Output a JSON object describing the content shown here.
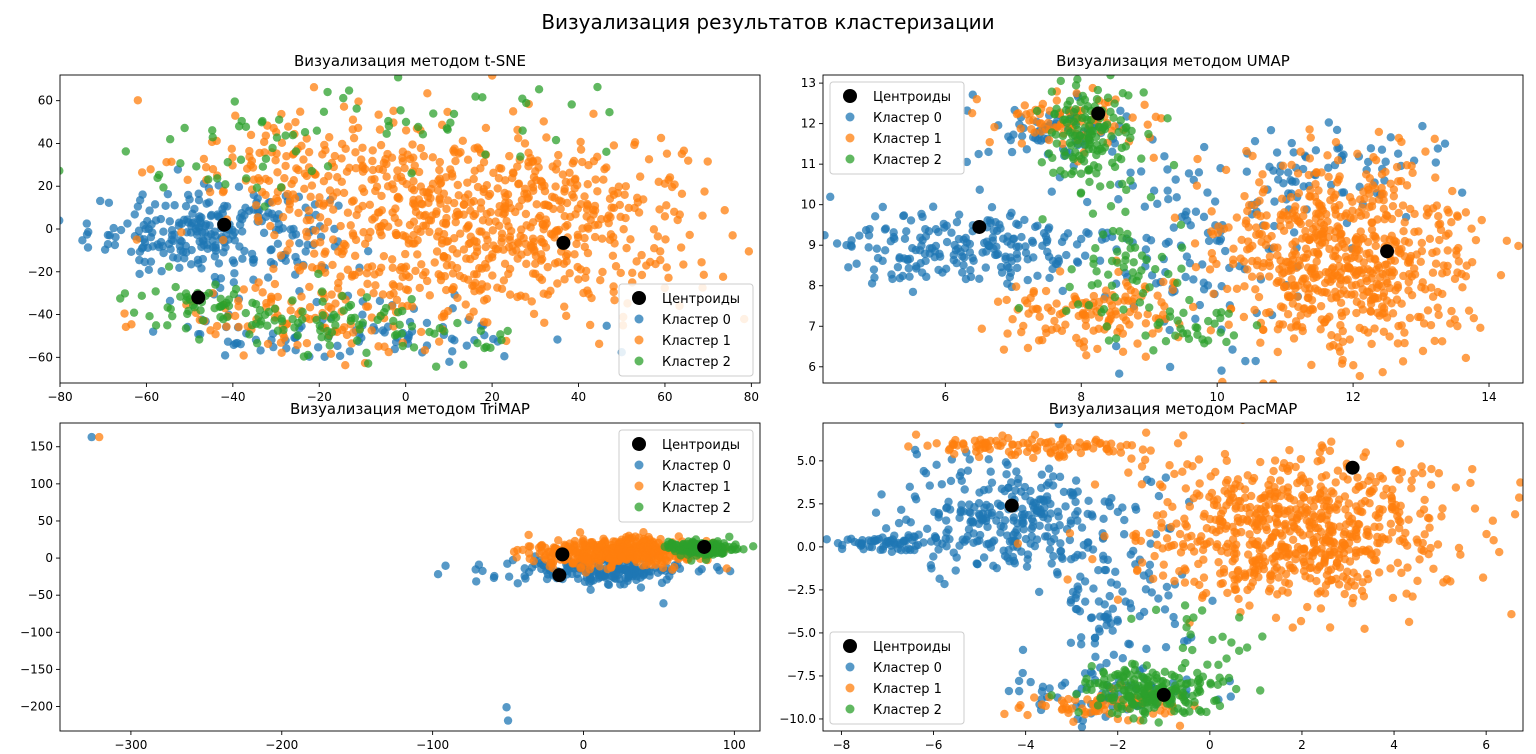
{
  "suptitle": "Визуализация результатов кластеризации",
  "colors": {
    "cluster0": "#1f77b4",
    "cluster1": "#ff7f0e",
    "cluster2": "#2ca02c",
    "centroid": "#000000"
  },
  "chart_data": [
    {
      "type": "scatter",
      "title": "Визуализация методом t-SNE",
      "xlim": [
        -80,
        82
      ],
      "ylim": [
        -72,
        72
      ],
      "xticks": [
        -80,
        -60,
        -40,
        -20,
        0,
        20,
        40,
        60,
        80
      ],
      "yticks": [
        -60,
        -40,
        -20,
        0,
        20,
        40,
        60
      ],
      "grid": false,
      "legend": {
        "position": "lower-right",
        "entries": [
          "Центроиды",
          "Кластер 0",
          "Кластер 1",
          "Кластер 2"
        ]
      },
      "centroids": [
        [
          -42,
          2
        ],
        [
          36.5,
          -6.5
        ],
        [
          -48,
          -32
        ]
      ],
      "clouds": [
        {
          "cluster": 0,
          "cx": -45,
          "cy": -2,
          "sx": 14,
          "sy": 10,
          "n": 260
        },
        {
          "cluster": 0,
          "cx": -20,
          "cy": -50,
          "sx": 18,
          "sy": 6,
          "n": 50
        },
        {
          "cluster": 0,
          "cx": 5,
          "cy": -45,
          "sx": 15,
          "sy": 7,
          "n": 40
        },
        {
          "cluster": 1,
          "cx": 20,
          "cy": 2,
          "sx": 26,
          "sy": 22,
          "n": 700
        },
        {
          "cluster": 1,
          "cx": -20,
          "cy": 30,
          "sx": 18,
          "sy": 12,
          "n": 140
        },
        {
          "cluster": 1,
          "cx": -20,
          "cy": -40,
          "sx": 18,
          "sy": 10,
          "n": 120
        },
        {
          "cluster": 2,
          "cx": -45,
          "cy": -34,
          "sx": 9,
          "sy": 5,
          "n": 50
        },
        {
          "cluster": 2,
          "cx": -25,
          "cy": -42,
          "sx": 12,
          "sy": 7,
          "n": 45
        },
        {
          "cluster": 2,
          "cx": -40,
          "cy": 35,
          "sx": 15,
          "sy": 10,
          "n": 35
        },
        {
          "cluster": 2,
          "cx": 10,
          "cy": 52,
          "sx": 22,
          "sy": 8,
          "n": 35
        },
        {
          "cluster": 2,
          "cx": 0,
          "cy": -50,
          "sx": 15,
          "sy": 8,
          "n": 40
        }
      ]
    },
    {
      "type": "scatter",
      "title": "Визуализация методом UMAP",
      "xlim": [
        4.2,
        14.5
      ],
      "ylim": [
        5.6,
        13.2
      ],
      "xticks": [
        6,
        8,
        10,
        12,
        14
      ],
      "yticks": [
        6,
        7,
        8,
        9,
        10,
        11,
        12,
        13
      ],
      "grid": false,
      "legend": {
        "position": "upper-left",
        "entries": [
          "Центроиды",
          "Кластер 0",
          "Кластер 1",
          "Кластер 2"
        ]
      },
      "centroids": [
        [
          6.5,
          9.45
        ],
        [
          8.25,
          12.25
        ],
        [
          12.5,
          8.85
        ]
      ],
      "clouds": [
        {
          "cluster": 0,
          "cx": 6.3,
          "cy": 8.9,
          "sx": 0.9,
          "sy": 0.45,
          "n": 200
        },
        {
          "cluster": 0,
          "cx": 7.6,
          "cy": 11.8,
          "sx": 0.6,
          "sy": 0.5,
          "n": 70
        },
        {
          "cluster": 0,
          "cx": 9.5,
          "cy": 8.8,
          "sx": 1.0,
          "sy": 1.1,
          "n": 120
        },
        {
          "cluster": 0,
          "cx": 11.5,
          "cy": 10.8,
          "sx": 0.9,
          "sy": 0.6,
          "n": 70
        },
        {
          "cluster": 1,
          "cx": 11.8,
          "cy": 8.7,
          "sx": 1.0,
          "sy": 1.2,
          "n": 650
        },
        {
          "cluster": 1,
          "cx": 8.2,
          "cy": 7.3,
          "sx": 0.8,
          "sy": 0.5,
          "n": 130
        },
        {
          "cluster": 1,
          "cx": 7.8,
          "cy": 12.1,
          "sx": 0.6,
          "sy": 0.4,
          "n": 80
        },
        {
          "cluster": 2,
          "cx": 8.1,
          "cy": 11.8,
          "sx": 0.35,
          "sy": 0.6,
          "n": 140
        },
        {
          "cluster": 2,
          "cx": 8.7,
          "cy": 8.4,
          "sx": 0.5,
          "sy": 0.8,
          "n": 60
        },
        {
          "cluster": 2,
          "cx": 9.6,
          "cy": 7.0,
          "sx": 0.5,
          "sy": 0.3,
          "n": 30
        }
      ]
    },
    {
      "type": "scatter",
      "title": "Визуализация методом TriMAP",
      "xlim": [
        -347,
        117
      ],
      "ylim": [
        -233,
        182
      ],
      "xticks": [
        -300,
        -200,
        -100,
        0,
        100
      ],
      "yticks": [
        -200,
        -150,
        -100,
        -50,
        0,
        50,
        100,
        150
      ],
      "grid": false,
      "legend": {
        "position": "upper-right",
        "entries": [
          "Центроиды",
          "Кластер 0",
          "Кластер 1",
          "Кластер 2"
        ]
      },
      "centroids": [
        [
          -14,
          5
        ],
        [
          80,
          15
        ],
        [
          -16,
          -23
        ]
      ],
      "points": [
        {
          "cluster": 0,
          "x": -326,
          "y": 163
        },
        {
          "cluster": 1,
          "x": -321,
          "y": 163
        },
        {
          "cluster": 0,
          "x": -51,
          "y": -201
        },
        {
          "cluster": 0,
          "x": -50,
          "y": -219
        },
        {
          "cluster": 0,
          "x": 53,
          "y": -61
        },
        {
          "cluster": 1,
          "x": 95,
          "y": -14
        }
      ],
      "clouds": [
        {
          "cluster": 0,
          "cx": 10,
          "cy": -18,
          "sx": 30,
          "sy": 10,
          "n": 200
        },
        {
          "cluster": 1,
          "cx": 25,
          "cy": 8,
          "sx": 28,
          "sy": 10,
          "n": 450
        },
        {
          "cluster": 2,
          "cx": 78,
          "cy": 13,
          "sx": 10,
          "sy": 5,
          "n": 160
        }
      ]
    },
    {
      "type": "scatter",
      "title": "Визуализация методом PacMAP",
      "xlim": [
        -8.4,
        6.8
      ],
      "ylim": [
        -10.7,
        7.2
      ],
      "xticks": [
        -8,
        -6,
        -4,
        -2,
        0,
        2,
        4,
        6
      ],
      "yticks": [
        -10.0,
        -7.5,
        -5.0,
        -2.5,
        0.0,
        2.5,
        5.0
      ],
      "grid": false,
      "legend": {
        "position": "lower-left",
        "entries": [
          "Центроиды",
          "Кластер 0",
          "Кластер 1",
          "Кластер 2"
        ]
      },
      "centroids": [
        [
          -4.3,
          2.4
        ],
        [
          3.1,
          4.6
        ],
        [
          -1.0,
          -8.6
        ]
      ],
      "clouds": [
        {
          "cluster": 0,
          "cx": -4.3,
          "cy": 1.5,
          "sx": 1.3,
          "sy": 1.6,
          "n": 300
        },
        {
          "cluster": 0,
          "cx": -6.8,
          "cy": 0.2,
          "sx": 0.8,
          "sy": 0.25,
          "n": 60
        },
        {
          "cluster": 0,
          "cx": -2.0,
          "cy": -8.5,
          "sx": 1.2,
          "sy": 0.9,
          "n": 80
        },
        {
          "cluster": 0,
          "cx": -2.0,
          "cy": -3.5,
          "sx": 0.8,
          "sy": 1.5,
          "n": 80
        },
        {
          "cluster": 1,
          "cx": 2.0,
          "cy": 1.0,
          "sx": 1.8,
          "sy": 2.2,
          "n": 700
        },
        {
          "cluster": 1,
          "cx": -4.0,
          "cy": 5.8,
          "sx": 1.2,
          "sy": 0.3,
          "n": 100
        },
        {
          "cluster": 1,
          "cx": -2.2,
          "cy": -9.3,
          "sx": 1.0,
          "sy": 0.5,
          "n": 70
        },
        {
          "cluster": 2,
          "cx": -1.2,
          "cy": -8.3,
          "sx": 0.8,
          "sy": 0.8,
          "n": 200
        },
        {
          "cluster": 2,
          "cx": -0.3,
          "cy": -5.0,
          "sx": 0.6,
          "sy": 1.0,
          "n": 20
        }
      ]
    }
  ]
}
